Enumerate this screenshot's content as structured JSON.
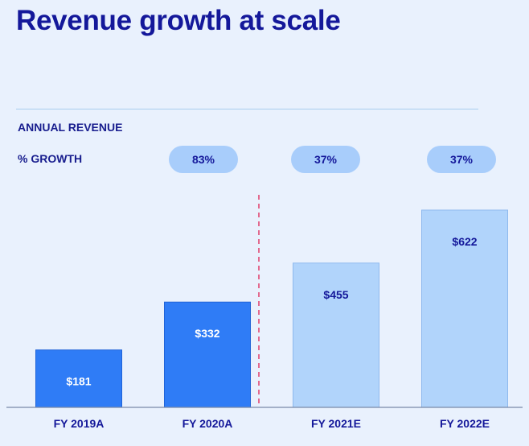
{
  "title": "Revenue growth at scale",
  "labels": {
    "revenue": "ANNUAL REVENUE",
    "growth": "% GROWTH"
  },
  "growth": [
    "83%",
    "37%",
    "37%"
  ],
  "colors": {
    "actual": "#2f7cf6",
    "estimate": "#b1d4fb",
    "title": "#14189a",
    "divider": "#e03c6a",
    "background": "#e9f1fd"
  },
  "chart_data": {
    "type": "bar",
    "categories": [
      "FY 2019A",
      "FY 2020A",
      "FY 2021E",
      "FY 2022E"
    ],
    "values": [
      181,
      332,
      455,
      622
    ],
    "value_labels": [
      "$181",
      "$332",
      "$455",
      "$622"
    ],
    "bar_kind": [
      "actual",
      "actual",
      "estimate",
      "estimate"
    ],
    "ylim": [
      0,
      660
    ],
    "divider": "dashed line between FY 2020A and FY 2021E",
    "grid": false
  }
}
